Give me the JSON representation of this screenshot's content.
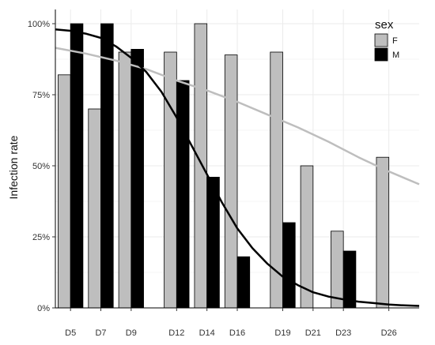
{
  "chart_data": {
    "type": "bar",
    "ylabel": "Infection rate",
    "xlabel": "",
    "title": "",
    "ylim": [
      0,
      1.05
    ],
    "yticks": [
      0,
      0.25,
      0.5,
      0.75,
      1.0
    ],
    "ytick_labels": [
      "0%",
      "25%",
      "50%",
      "75%",
      "100%"
    ],
    "x_axis": {
      "min": 4,
      "max": 28,
      "unit": "day"
    },
    "categories": [
      {
        "label": "D5",
        "day": 5
      },
      {
        "label": "D7",
        "day": 7
      },
      {
        "label": "D9",
        "day": 9
      },
      {
        "label": "D12",
        "day": 12
      },
      {
        "label": "D14",
        "day": 14
      },
      {
        "label": "D16",
        "day": 16
      },
      {
        "label": "D19",
        "day": 19
      },
      {
        "label": "D21",
        "day": 21
      },
      {
        "label": "D23",
        "day": 23
      },
      {
        "label": "D26",
        "day": 26
      }
    ],
    "series": [
      {
        "name": "F",
        "color": "#bebebe",
        "values": [
          0.82,
          0.7,
          0.9,
          0.9,
          1.0,
          0.89,
          0.9,
          0.5,
          0.27,
          0.53
        ]
      },
      {
        "name": "M",
        "color": "#000000",
        "values": [
          1.0,
          1.0,
          0.91,
          0.8,
          0.46,
          0.18,
          0.3,
          0.0,
          0.2,
          0.0
        ]
      }
    ],
    "trend_lines": [
      {
        "series": "F",
        "color": "#bebebe",
        "points": [
          [
            4.0,
            0.915
          ],
          [
            6,
            0.895
          ],
          [
            8,
            0.87
          ],
          [
            10,
            0.84
          ],
          [
            12,
            0.8
          ],
          [
            14,
            0.765
          ],
          [
            16,
            0.725
          ],
          [
            18,
            0.68
          ],
          [
            20,
            0.635
          ],
          [
            22,
            0.585
          ],
          [
            24,
            0.53
          ],
          [
            26,
            0.48
          ],
          [
            28,
            0.435
          ]
        ]
      },
      {
        "series": "M",
        "color": "#000000",
        "points": [
          [
            4.0,
            0.98
          ],
          [
            5,
            0.975
          ],
          [
            6,
            0.965
          ],
          [
            7,
            0.95
          ],
          [
            8,
            0.92
          ],
          [
            9,
            0.88
          ],
          [
            10,
            0.83
          ],
          [
            11,
            0.76
          ],
          [
            12,
            0.67
          ],
          [
            13,
            0.57
          ],
          [
            14,
            0.47
          ],
          [
            15,
            0.37
          ],
          [
            16,
            0.28
          ],
          [
            17,
            0.21
          ],
          [
            18,
            0.155
          ],
          [
            19,
            0.11
          ],
          [
            20,
            0.08
          ],
          [
            21,
            0.055
          ],
          [
            22,
            0.04
          ],
          [
            23,
            0.03
          ],
          [
            24,
            0.022
          ],
          [
            25,
            0.017
          ],
          [
            26,
            0.012
          ],
          [
            27,
            0.009
          ],
          [
            28,
            0.007
          ]
        ]
      }
    ],
    "legend": {
      "title": "sex",
      "position": "top-right",
      "entries": [
        "F",
        "M"
      ]
    },
    "grid": true
  }
}
